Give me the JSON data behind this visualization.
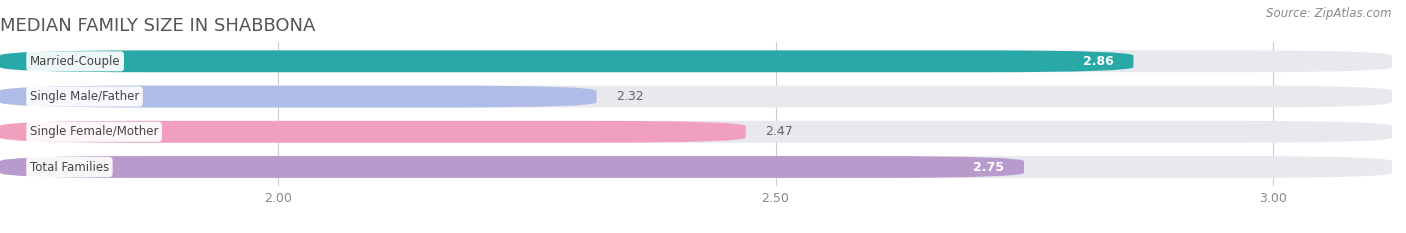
{
  "title": "MEDIAN FAMILY SIZE IN SHABBONA",
  "source": "Source: ZipAtlas.com",
  "categories": [
    "Married-Couple",
    "Single Male/Father",
    "Single Female/Mother",
    "Total Families"
  ],
  "values": [
    2.86,
    2.32,
    2.47,
    2.75
  ],
  "bar_colors": [
    "#29a8a8",
    "#b0bce8",
    "#f0a0be",
    "#b89acc"
  ],
  "bar_bg_color": "#e8e8ee",
  "value_inside_color": [
    "#ffffff",
    "#666666",
    "#666666",
    "#ffffff"
  ],
  "value_inside": [
    true,
    false,
    false,
    true
  ],
  "xlim_left": 1.72,
  "xlim_right": 3.12,
  "xticks": [
    2.0,
    2.5,
    3.0
  ],
  "xtick_labels": [
    "2.00",
    "2.50",
    "3.00"
  ],
  "bar_height": 0.62,
  "background_color": "#ffffff",
  "title_fontsize": 13,
  "source_fontsize": 8.5,
  "label_fontsize": 8.5,
  "value_fontsize": 9
}
